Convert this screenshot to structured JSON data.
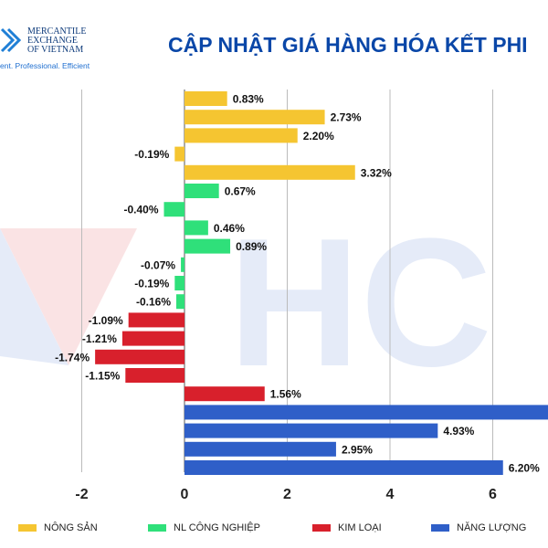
{
  "header": {
    "logo_lines": [
      "MERCANTILE",
      "EXCHANGE",
      "OF VIETNAM"
    ],
    "tagline": "ent. Professional. Efficient",
    "title": "CẬP NHẬT GIÁ HÀNG HÓA KẾT PHI"
  },
  "colors": {
    "nong_san": "#f5c531",
    "nl_cong_nghiep": "#2fe07a",
    "kim_loai": "#d8202c",
    "nang_luong": "#2f5fc8",
    "title": "#0a47a8"
  },
  "chart_data": {
    "type": "bar",
    "orientation": "horizontal",
    "xlim": [
      -4,
      7
    ],
    "xticks": [
      -2,
      0,
      2,
      4,
      6
    ],
    "grid": true,
    "legend_position": "bottom",
    "series": [
      {
        "name": "NÔNG SẢN",
        "color": "#f5c531",
        "values": [
          0.83,
          2.73,
          2.2,
          -0.19,
          3.32
        ]
      },
      {
        "name": "NL CÔNG NGHIỆP",
        "color": "#2fe07a",
        "values": [
          0.67,
          -0.4,
          0.46,
          0.89,
          -0.07,
          -0.19,
          -0.16
        ]
      },
      {
        "name": "KIM LOẠI",
        "color": "#d8202c",
        "values": [
          -1.09,
          -1.21,
          -1.74,
          -1.15,
          1.56
        ]
      },
      {
        "name": "NĂNG LƯỢNG",
        "color": "#2f5fc8",
        "values": [
          7.5,
          4.93,
          2.95,
          6.2
        ]
      }
    ],
    "bars": [
      {
        "series": 0,
        "value": 0.83,
        "label": "0.83%"
      },
      {
        "series": 0,
        "value": 2.73,
        "label": "2.73%"
      },
      {
        "series": 0,
        "value": 2.2,
        "label": "2.20%"
      },
      {
        "series": 0,
        "value": -0.19,
        "label": "-0.19%"
      },
      {
        "series": 0,
        "value": 3.32,
        "label": "3.32%"
      },
      {
        "series": 1,
        "value": 0.67,
        "label": "0.67%"
      },
      {
        "series": 1,
        "value": -0.4,
        "label": "-0.40%"
      },
      {
        "series": 1,
        "value": 0.46,
        "label": "0.46%"
      },
      {
        "series": 1,
        "value": 0.89,
        "label": "0.89%"
      },
      {
        "series": 1,
        "value": -0.07,
        "label": "-0.07%"
      },
      {
        "series": 1,
        "value": -0.19,
        "label": "-0.19%"
      },
      {
        "series": 1,
        "value": -0.16,
        "label": "-0.16%"
      },
      {
        "series": 2,
        "value": -1.09,
        "label": "-1.09%"
      },
      {
        "series": 2,
        "value": -1.21,
        "label": "-1.21%"
      },
      {
        "series": 2,
        "value": -1.74,
        "label": "-1.74%"
      },
      {
        "series": 2,
        "value": -1.15,
        "label": "-1.15%"
      },
      {
        "series": 2,
        "value": 1.56,
        "label": "1.56%"
      },
      {
        "series": 3,
        "value": 7.5,
        "label": ""
      },
      {
        "series": 3,
        "value": 4.93,
        "label": "4.93%"
      },
      {
        "series": 3,
        "value": 2.95,
        "label": "2.95%"
      },
      {
        "series": 3,
        "value": 6.2,
        "label": "6.20%"
      }
    ]
  }
}
